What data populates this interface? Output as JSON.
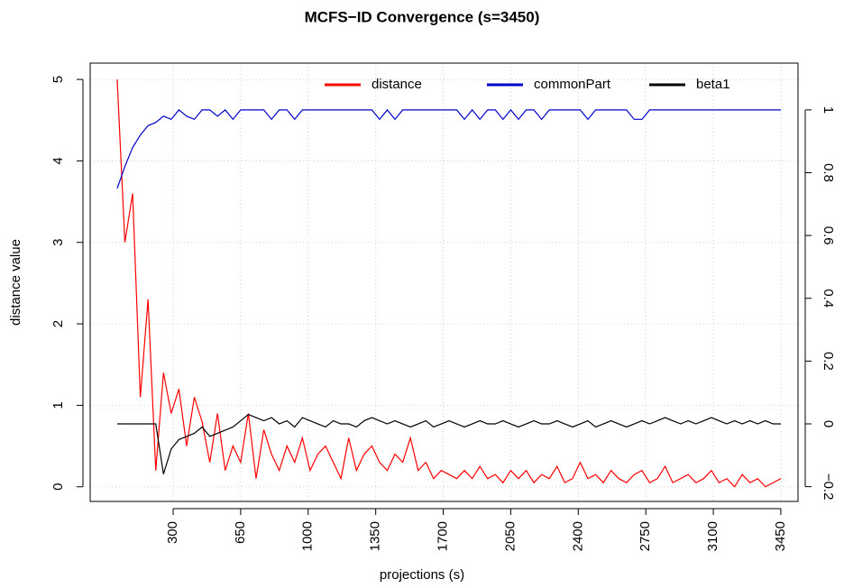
{
  "chart_data": {
    "type": "line",
    "title": "MCFS−ID Convergence (s=3450)",
    "x_label": "projections (s)",
    "y_label": "distance value",
    "x": [
      10,
      50,
      90,
      130,
      170,
      210,
      250,
      290,
      330,
      370,
      410,
      450,
      490,
      530,
      570,
      610,
      650,
      690,
      730,
      770,
      810,
      850,
      890,
      930,
      970,
      1010,
      1050,
      1090,
      1130,
      1170,
      1210,
      1250,
      1290,
      1330,
      1370,
      1410,
      1450,
      1490,
      1530,
      1570,
      1610,
      1650,
      1690,
      1730,
      1770,
      1810,
      1850,
      1890,
      1930,
      1970,
      2010,
      2050,
      2090,
      2130,
      2170,
      2210,
      2250,
      2290,
      2330,
      2370,
      2410,
      2450,
      2490,
      2530,
      2570,
      2610,
      2650,
      2690,
      2730,
      2770,
      2810,
      2850,
      2890,
      2930,
      2970,
      3010,
      3050,
      3090,
      3130,
      3170,
      3210,
      3250,
      3290,
      3330,
      3370,
      3410,
      3450
    ],
    "series": [
      {
        "name": "distance",
        "color": "#ff0000",
        "axis": "y",
        "values": [
          5.0,
          3.0,
          3.6,
          1.1,
          2.3,
          0.2,
          1.4,
          0.9,
          1.2,
          0.5,
          1.1,
          0.8,
          0.3,
          0.9,
          0.2,
          0.5,
          0.3,
          0.9,
          0.1,
          0.7,
          0.4,
          0.2,
          0.5,
          0.3,
          0.6,
          0.2,
          0.4,
          0.5,
          0.3,
          0.1,
          0.6,
          0.2,
          0.4,
          0.5,
          0.3,
          0.2,
          0.4,
          0.3,
          0.6,
          0.2,
          0.3,
          0.1,
          0.2,
          0.15,
          0.1,
          0.2,
          0.1,
          0.25,
          0.1,
          0.15,
          0.05,
          0.2,
          0.1,
          0.2,
          0.05,
          0.15,
          0.1,
          0.25,
          0.05,
          0.1,
          0.3,
          0.1,
          0.15,
          0.05,
          0.2,
          0.1,
          0.05,
          0.15,
          0.2,
          0.05,
          0.1,
          0.25,
          0.05,
          0.1,
          0.15,
          0.05,
          0.1,
          0.2,
          0.05,
          0.1,
          0.0,
          0.15,
          0.05,
          0.1,
          0.0,
          0.05,
          0.1
        ]
      },
      {
        "name": "commonPart",
        "color": "#0000cd",
        "axis": "y2",
        "values": [
          0.75,
          0.82,
          0.88,
          0.92,
          0.95,
          0.96,
          0.98,
          0.97,
          1,
          0.98,
          0.97,
          1,
          1,
          0.98,
          1,
          0.97,
          1,
          1,
          1,
          1,
          0.97,
          1,
          1,
          0.97,
          1,
          1,
          1,
          1,
          1,
          1,
          1,
          1,
          1,
          1,
          0.97,
          1,
          0.97,
          1,
          1,
          1,
          1,
          1,
          1,
          1,
          1,
          0.97,
          1,
          0.97,
          1,
          1,
          0.97,
          1,
          0.97,
          1,
          1,
          0.97,
          1,
          1,
          1,
          1,
          1,
          0.97,
          1,
          1,
          1,
          1,
          1,
          0.97,
          0.97,
          1,
          1,
          1,
          1,
          1,
          1,
          1,
          1,
          1,
          1,
          1,
          1,
          1,
          1,
          1,
          1,
          1,
          1
        ]
      },
      {
        "name": "beta1",
        "color": "#000000",
        "axis": "y2",
        "values": [
          0,
          0,
          0,
          0,
          0,
          0,
          -0.16,
          -0.08,
          -0.05,
          -0.04,
          -0.03,
          -0.01,
          -0.04,
          -0.03,
          -0.02,
          -0.01,
          0.01,
          0.03,
          0.02,
          0.01,
          0.02,
          0.0,
          0.01,
          -0.01,
          0.02,
          0.01,
          0.0,
          -0.01,
          0.01,
          0.0,
          0.0,
          -0.01,
          0.01,
          0.02,
          0.01,
          0.0,
          0.01,
          0.0,
          -0.01,
          0.0,
          0.01,
          -0.01,
          0.0,
          0.01,
          0.0,
          -0.01,
          0.0,
          0.01,
          0.0,
          0.0,
          0.01,
          0.0,
          -0.01,
          0.0,
          0.01,
          0.0,
          0.0,
          0.01,
          0.0,
          -0.01,
          0.0,
          0.01,
          -0.01,
          0.0,
          0.01,
          0.0,
          -0.01,
          0.0,
          0.01,
          0.0,
          0.01,
          0.02,
          0.01,
          0.0,
          0.01,
          0.0,
          0.01,
          0.02,
          0.01,
          0.0,
          0.01,
          0.0,
          0.01,
          0.0,
          0.01,
          0.0,
          0.0
        ]
      }
    ],
    "xlim": [
      -130,
      3539
    ],
    "xticks": [
      300,
      650,
      1000,
      1350,
      1700,
      2050,
      2400,
      2750,
      3100,
      3450
    ],
    "ylim": [
      -0.18,
      5.2
    ],
    "yticks": [
      0,
      1,
      2,
      3,
      4,
      5
    ],
    "y2lim": [
      -0.247,
      1.149
    ],
    "y2ticks": [
      {
        "value": -0.2,
        "label": "−0.2"
      },
      0,
      0.2,
      0.4,
      0.6,
      0.8,
      1
    ],
    "grid": true,
    "legend": "top"
  }
}
